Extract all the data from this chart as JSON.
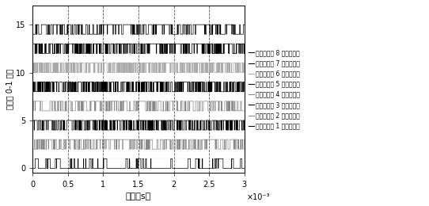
{
  "title": "",
  "xlabel": "时间（s）",
  "ylabel": "数字化 0-1 电平",
  "xlim": [
    0,
    0.003
  ],
  "ylim": [
    -0.5,
    17
  ],
  "yticks": [
    0,
    5,
    10,
    15
  ],
  "xticks": [
    0,
    0.0005,
    0.001,
    0.0015,
    0.002,
    0.0025,
    0.003
  ],
  "xticklabels": [
    "0",
    "0.5",
    "1",
    "1.5",
    "2",
    "2.5",
    "3"
  ],
  "scale_note": "×10⁻³",
  "sensor_labels": [
    "对应传感器 1 的数字序列",
    "对应传感器 2 的数字序列",
    "对应传感器 3 的数字序列",
    "对应传感器 4 的数字序列",
    "对应传感器 5 的数字序列",
    "对应传感器 6 的数字序列",
    "对应传感器 7 的数字序列",
    "对应传感器 8 的数字序列"
  ],
  "offsets": [
    0,
    2,
    4,
    6,
    8,
    10,
    12,
    14
  ],
  "amplitude": 1.0,
  "colors": [
    "black",
    "#888888",
    "black",
    "#888888",
    "black",
    "#aaaaaa",
    "black",
    "black"
  ],
  "vlines": [
    0.0005,
    0.001,
    0.0015,
    0.002,
    0.0025
  ],
  "vline_color": "#555555",
  "vline_style": "--",
  "background": "white",
  "figsize": [
    5.42,
    2.6
  ],
  "dpi": 100,
  "num_samples": 3000,
  "seed": 42
}
